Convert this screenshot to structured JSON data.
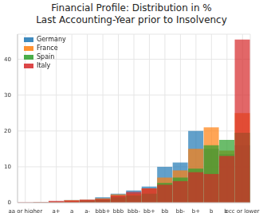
{
  "chart_data": {
    "type": "bar",
    "title": "Financial Profile: Distribution in %\nLast Accounting-Year prior to Insolvency",
    "categories": [
      "aa or higher",
      null,
      "a+",
      "a",
      "a-",
      "bbb+",
      "bbb",
      "bbb-",
      "bb+",
      "bb",
      "bb-",
      "b+",
      "b",
      "b-",
      "ccc or lower"
    ],
    "series": [
      {
        "name": "Germany",
        "color": "#1f77b4",
        "values": [
          0,
          0.1,
          0.3,
          0.7,
          0.8,
          1.5,
          2.5,
          3.4,
          4.5,
          10,
          11.2,
          20,
          15,
          13.5,
          16
        ]
      },
      {
        "name": "France",
        "color": "#ff7f0e",
        "values": [
          0,
          0.1,
          0.3,
          0.7,
          0.8,
          1.2,
          2.3,
          2.5,
          4,
          7,
          9,
          15,
          21,
          14.5,
          25
        ]
      },
      {
        "name": "Spain",
        "color": "#2ca02c",
        "values": [
          0,
          0,
          0.1,
          0.2,
          0.5,
          0.8,
          1.5,
          2,
          2.5,
          5.5,
          7,
          9.5,
          16,
          17.5,
          19.5
        ]
      },
      {
        "name": "Italy",
        "color": "#d62728",
        "values": [
          0.1,
          0.1,
          0.5,
          0.6,
          0.8,
          1,
          2,
          3,
          4,
          5,
          6,
          8.5,
          8,
          13,
          45.5
        ]
      }
    ],
    "ylim": [
      0,
      47
    ],
    "yticks": [
      0,
      10,
      20,
      30,
      40
    ],
    "grid": true,
    "legend": "upper left"
  }
}
